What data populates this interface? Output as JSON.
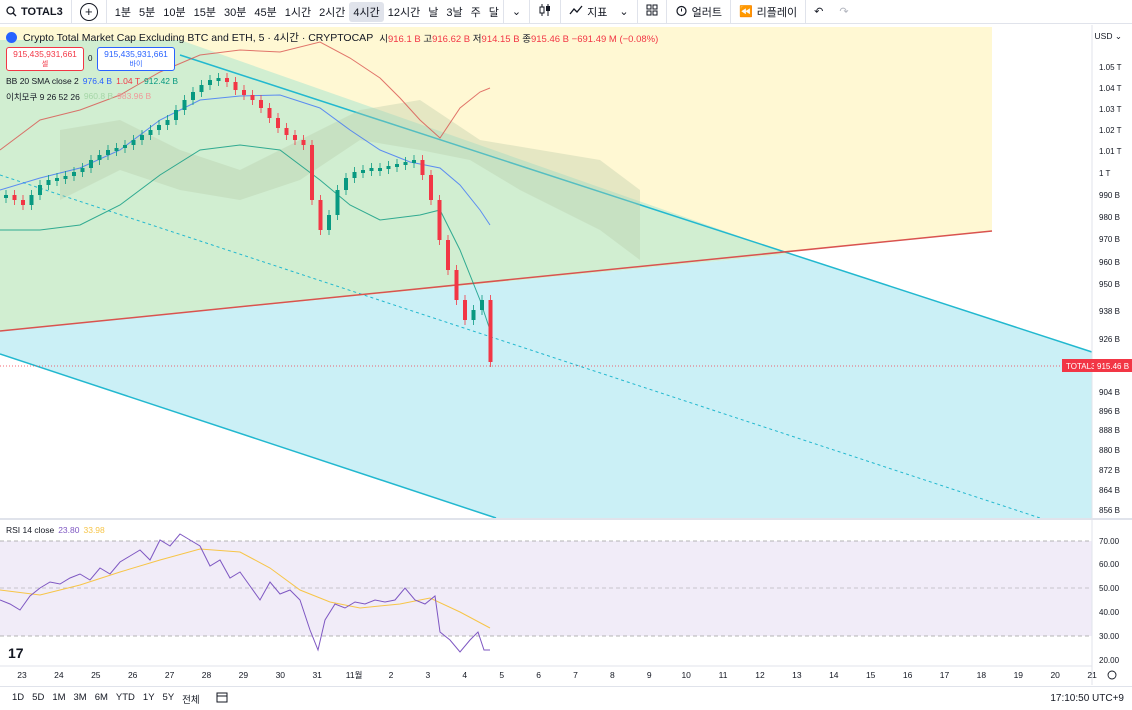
{
  "toolbar": {
    "symbol": "TOTAL3",
    "timeframes": [
      "1분",
      "5분",
      "10분",
      "15분",
      "30분",
      "45분",
      "1시간",
      "2시간",
      "4시간",
      "12시간",
      "날",
      "3날",
      "주",
      "달"
    ],
    "active_timeframe": "4시간",
    "indicators_label": "지표",
    "alert_label": "얼러트",
    "replay_label": "리플레이"
  },
  "legend": {
    "title": "Crypto Total Market Cap Excluding BTC and ETH, 5 · 4시간 · CRYPTOCAP",
    "o_label": "시",
    "o": "916.1 B",
    "h_label": "고",
    "h": "916.62 B",
    "l_label": "저",
    "l": "914.15 B",
    "c_label": "종",
    "c": "915.46 B",
    "chg": "−691.49 M (−0.08%)"
  },
  "trade": {
    "sell_price": "915,435,931,661",
    "sell_label": "셀",
    "spread": "0",
    "buy_price": "915,435,931,661",
    "buy_label": "바이"
  },
  "indicators": {
    "bb_name": "BB 20 SMA close 2",
    "bb_basis": "976.4 B",
    "bb_upper": "1.04 T",
    "bb_lower": "912.42 B",
    "ichi_name": "이치모쿠 9 26 52 26",
    "ichi_a": "960.8 B",
    "ichi_b": "983.96 B",
    "rsi_name": "RSI 14 close",
    "rsi_val": "23.80",
    "rsi_ma": "33.98"
  },
  "price_axis": {
    "currency": "USD",
    "labels": [
      "1.05 T",
      "1.04 T",
      "1.03 T",
      "1.02 T",
      "1.01 T",
      "1 T",
      "990 B",
      "980 B",
      "970 B",
      "960 B",
      "950 B",
      "938 B",
      "926 B",
      "904 B",
      "896 B",
      "888 B",
      "880 B",
      "872 B",
      "864 B",
      "856 B"
    ],
    "last_symbol": "TOTAL3",
    "last_price": "915.46 B"
  },
  "rsi_axis": [
    "70.00",
    "60.00",
    "50.00",
    "40.00",
    "30.00",
    "20.00"
  ],
  "time_axis": [
    "23",
    "24",
    "25",
    "26",
    "27",
    "28",
    "29",
    "30",
    "31",
    "11월",
    "2",
    "3",
    "4",
    "5",
    "6",
    "7",
    "8",
    "9",
    "10",
    "11",
    "12",
    "13",
    "14",
    "15",
    "16",
    "17",
    "18",
    "19",
    "20",
    "21"
  ],
  "bottom": {
    "ranges": [
      "1D",
      "5D",
      "1M",
      "3M",
      "6M",
      "YTD",
      "1Y",
      "5Y",
      "전체"
    ],
    "clock": "17:10:50 UTC+9"
  },
  "colors": {
    "up": "#089981",
    "down": "#f23645",
    "channel": "#22b8cf",
    "accent": "#2962ff"
  }
}
